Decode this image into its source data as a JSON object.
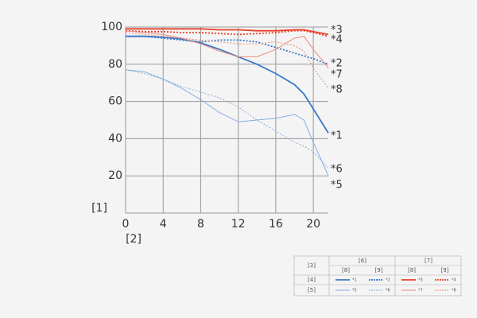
{
  "chart_data": {
    "type": "line",
    "x_label": "[2]",
    "y_label": "[1]",
    "x": [
      0,
      2,
      4,
      6,
      8,
      10,
      12,
      14,
      16,
      18,
      19,
      20,
      21.6
    ],
    "xlim": [
      0,
      21.6
    ],
    "xticks": [
      0,
      4,
      8,
      12,
      16,
      20
    ],
    "ylim": [
      0,
      100
    ],
    "yticks": [
      20,
      40,
      60,
      80,
      100
    ],
    "grid": true,
    "series": [
      {
        "name": "*1",
        "color": "#3a78c9",
        "width": 1.8,
        "dashed": false,
        "values": [
          95,
          95,
          94.5,
          93.5,
          91.5,
          88,
          84,
          80,
          75,
          69,
          64,
          56,
          43
        ]
      },
      {
        "name": "*2",
        "color": "#3a78c9",
        "width": 1.8,
        "dashed": true,
        "values": [
          95,
          95,
          94,
          93,
          92,
          93,
          93,
          92,
          89,
          86,
          84.5,
          83,
          80
        ]
      },
      {
        "name": "*3",
        "color": "#e8402a",
        "width": 1.8,
        "dashed": false,
        "values": [
          99,
          99,
          99,
          99,
          99,
          98.5,
          98.5,
          98,
          98,
          98.5,
          98.5,
          97.5,
          96
        ]
      },
      {
        "name": "*4",
        "color": "#e8402a",
        "width": 1.8,
        "dashed": true,
        "values": [
          98,
          97.5,
          97.5,
          97,
          97,
          96.5,
          96,
          96.5,
          97,
          98,
          98,
          97,
          95
        ]
      },
      {
        "name": "*5",
        "color": "#86aee0",
        "width": 1,
        "dashed": false,
        "values": [
          77,
          76,
          72,
          67,
          61,
          54,
          49,
          50,
          51,
          53,
          50,
          38,
          20
        ]
      },
      {
        "name": "*6",
        "color": "#86aee0",
        "width": 1,
        "dashed": true,
        "values": [
          77,
          75,
          72,
          68,
          65,
          62,
          57,
          50,
          44,
          38,
          36,
          33,
          24
        ]
      },
      {
        "name": "*7",
        "color": "#f08a7a",
        "width": 1,
        "dashed": false,
        "values": [
          98,
          97,
          96,
          94,
          91,
          87,
          84,
          84,
          88,
          94,
          95,
          88,
          78
        ]
      },
      {
        "name": "*8",
        "color": "#f08a7a",
        "width": 1,
        "dashed": true,
        "values": [
          97,
          96,
          95,
          94,
          93,
          92,
          91,
          91,
          92,
          90,
          87,
          78,
          67
        ]
      }
    ],
    "legend_table": {
      "corner": "[3]",
      "groups": [
        "[6]",
        "[7]"
      ],
      "subheaders": [
        "[8]",
        "[9]",
        "[8]",
        "[9]"
      ],
      "rows": [
        "[4]",
        "[5]"
      ]
    }
  }
}
